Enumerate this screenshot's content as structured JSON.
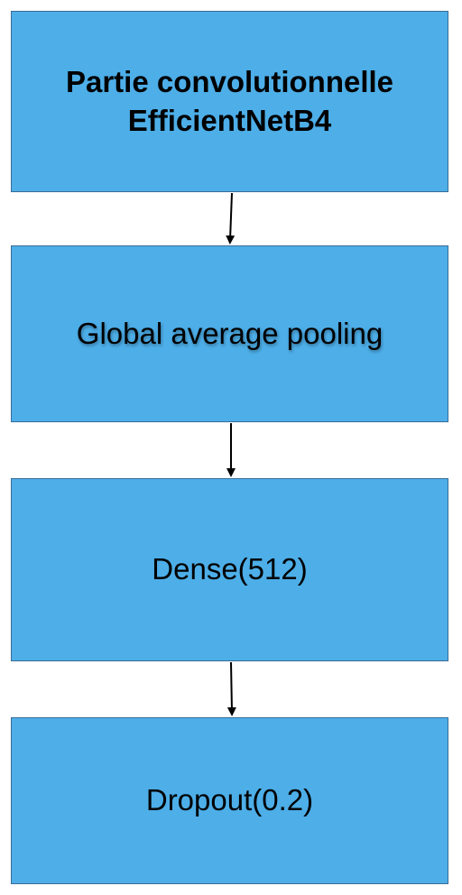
{
  "nodes": [
    {
      "line1": "Partie convolutionnelle",
      "line2": "EfficientNetB4"
    },
    {
      "line1": "Global average pooling"
    },
    {
      "line1": "Dense(512)"
    },
    {
      "line1": "Dropout(0.2)"
    }
  ],
  "colors": {
    "box_fill": "#4DAEE8",
    "box_border": "#3a6d99",
    "arrow": "#000000"
  }
}
